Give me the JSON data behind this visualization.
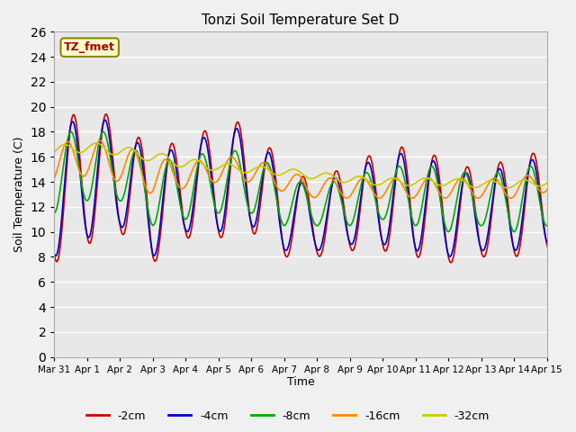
{
  "title": "Tonzi Soil Temperature Set D",
  "xlabel": "Time",
  "ylabel": "Soil Temperature (C)",
  "legend_label": "TZ_fmet",
  "ylim": [
    0,
    26
  ],
  "yticks": [
    0,
    2,
    4,
    6,
    8,
    10,
    12,
    14,
    16,
    18,
    20,
    22,
    24,
    26
  ],
  "fig_bg_color": "#f0f0f0",
  "plot_bg_color": "#e8e8e8",
  "series_colors": {
    "-2cm": "#cc0000",
    "-4cm": "#0000cc",
    "-8cm": "#00aa00",
    "-16cm": "#ff8800",
    "-32cm": "#cccc00"
  },
  "series_names": [
    "-2cm",
    "-4cm",
    "-8cm",
    "-16cm",
    "-32cm"
  ],
  "xtick_labels": [
    "Mar 31",
    "Apr 1",
    "Apr 2",
    "Apr 3",
    "Apr 4",
    "Apr 5",
    "Apr 6",
    "Apr 7",
    "Apr 8",
    "Apr 9",
    "Apr 10",
    "Apr 11",
    "Apr 12",
    "Apr 13",
    "Apr 14",
    "Apr 15"
  ],
  "days": 16,
  "ppd": 48
}
